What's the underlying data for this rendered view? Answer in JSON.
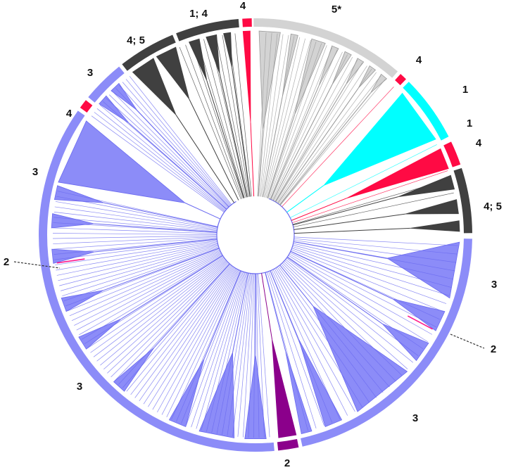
{
  "colors": {
    "group1": "#00ffff",
    "group2": "#8b008b",
    "group3": "#8c8cf8",
    "group3_line": "#6a6af0",
    "group4": "#ff0a44",
    "group45": "#404040",
    "group5": "#d3d3d3",
    "group5_line": "#9a9a9a"
  },
  "labels": {
    "top_4": "4",
    "top_5star": "5*",
    "top_1_4": "1; 4",
    "top_4_5": "4; 5",
    "upper_left_3": "3",
    "upper_left_4": "4",
    "left_3": "3",
    "left_2": "2",
    "right_4_small": "4",
    "right_1a": "1",
    "right_1b": "1",
    "right_4": "4",
    "right_4_5": "4; 5",
    "right_3": "3",
    "right_2": "2",
    "bottom_left_3": "3",
    "bottom_right_3": "3",
    "bottom_2": "2"
  }
}
